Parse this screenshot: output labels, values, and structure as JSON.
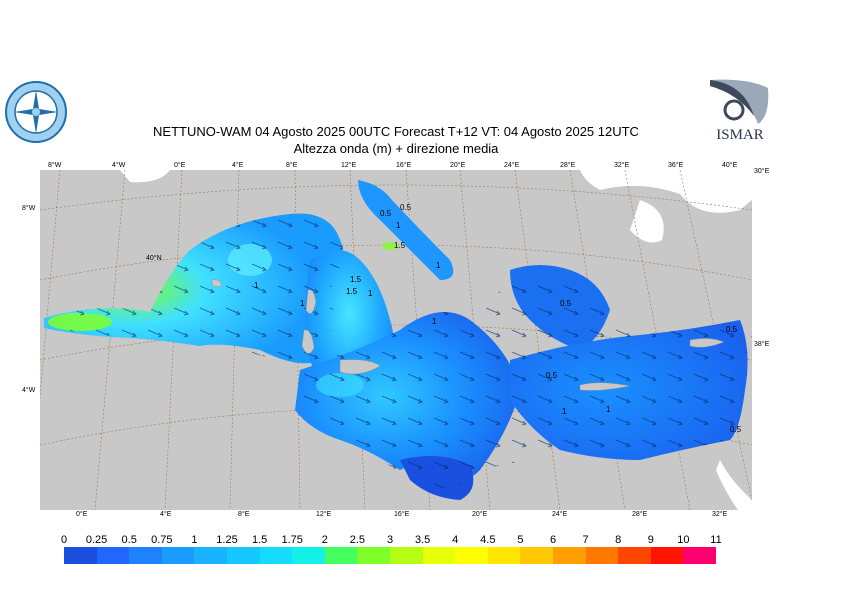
{
  "header": {
    "title": "NETTUNO-WAM  04   Agosto  2025 00UTC Forecast T+12 VT: 04   Agosto  2025 12UTC",
    "subtitle": "Altezza onda (m) + direzione media"
  },
  "logos": {
    "left": "circular emblem with compass rose",
    "right_text": "ISMAR"
  },
  "top_ticks": [
    "8°W",
    "4°W",
    "0°E",
    "4°E",
    "8°E",
    "12°E",
    "16°E",
    "20°E",
    "24°E",
    "28°E",
    "32°E",
    "36°E",
    "40°E"
  ],
  "bottom_ticks": [
    "0°E",
    "4°E",
    "8°E",
    "12°E",
    "16°E",
    "20°E",
    "24°E",
    "28°E",
    "32°E"
  ],
  "left_ticks": [
    "8°W",
    "40°N",
    "4°W"
  ],
  "right_ticks": [
    "30°E",
    "38°E"
  ],
  "contour_labels": [
    "1",
    "1.5",
    "1",
    "1",
    "1.5",
    "1",
    "0.5",
    "1",
    "0.5",
    "0.5",
    "1",
    "0.5",
    "1",
    "0.5",
    "0.5",
    "1",
    "1.5"
  ],
  "legend": {
    "levels": [
      "0",
      "0.25",
      "0.5",
      "0.75",
      "1",
      "1.25",
      "1.5",
      "1.75",
      "2",
      "2.5",
      "3",
      "3.5",
      "4",
      "4.5",
      "5",
      "6",
      "7",
      "8",
      "9",
      "10",
      "11"
    ],
    "colors": [
      "#1a4fe0",
      "#2266ff",
      "#1e82ff",
      "#1a9cff",
      "#18b2ff",
      "#16c8ff",
      "#14dcfa",
      "#12f0e8",
      "#44ff60",
      "#7fff2a",
      "#b4ff14",
      "#e8ff0a",
      "#ffff00",
      "#ffe600",
      "#ffc800",
      "#ffa000",
      "#ff7800",
      "#ff4600",
      "#ff1400",
      "#ff0070"
    ]
  },
  "colors": {
    "land": "#c8c8c8",
    "sea_low": "#1a4fe0",
    "sea_mid": "#1e90ff",
    "sea_high": "#40e0ff",
    "peak": "#7fff2a"
  }
}
